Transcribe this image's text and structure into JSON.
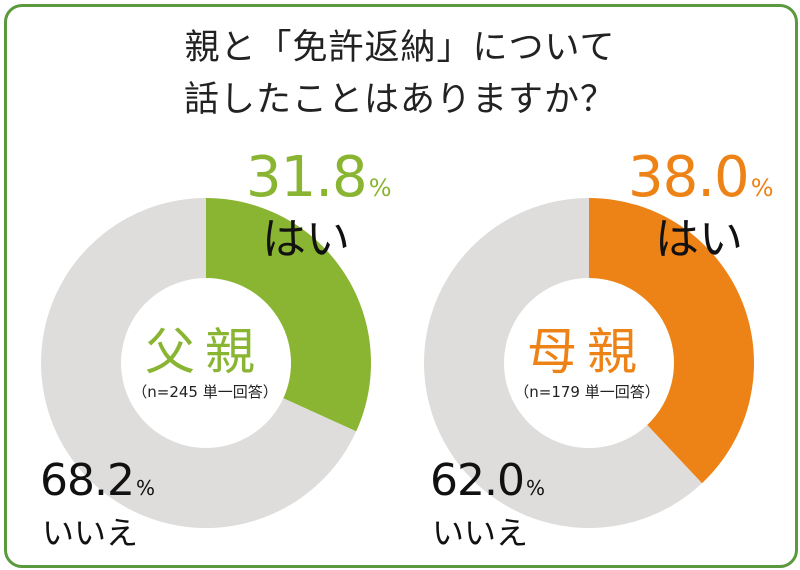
{
  "title_lines": [
    "親と「免許返納」について",
    "話したことはありますか？"
  ],
  "colors": {
    "border": "#5a9a3c",
    "father_yes": "#8ab532",
    "mother_yes": "#ed8316",
    "no": "#dedddc"
  },
  "chart_data": [
    {
      "type": "pie",
      "donut": true,
      "center_label": "父親",
      "center_sub": "（n=245 単一回答）",
      "slices": [
        {
          "label": "はい",
          "value": 31.8,
          "color": "#8ab532"
        },
        {
          "label": "いいえ",
          "value": 68.2,
          "color": "#dedddc"
        }
      ],
      "unit": "%"
    },
    {
      "type": "pie",
      "donut": true,
      "center_label": "母親",
      "center_sub": "（n=179 単一回答）",
      "slices": [
        {
          "label": "はい",
          "value": 38.0,
          "color": "#ed8316"
        },
        {
          "label": "いいえ",
          "value": 62.0,
          "color": "#dedddc"
        }
      ],
      "unit": "%"
    }
  ]
}
